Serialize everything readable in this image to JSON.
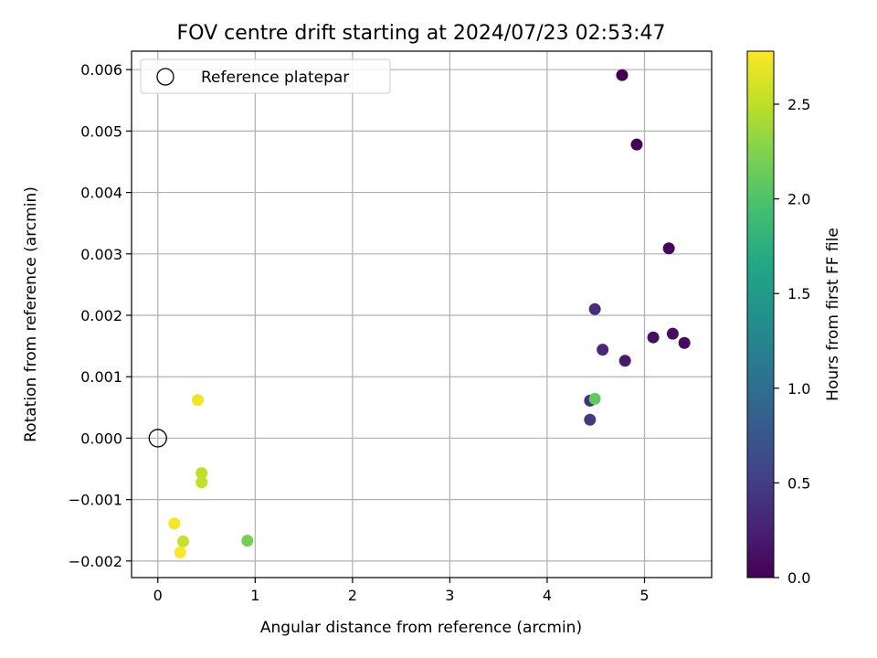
{
  "chart_data": {
    "type": "scatter",
    "title": "FOV centre drift starting at 2024/07/23 02:53:47",
    "xlabel": "Angular distance from reference (arcmin)",
    "ylabel": "Rotation from reference (arcmin)",
    "xlim": [
      -0.27,
      5.69
    ],
    "ylim": [
      -0.00227,
      0.0063
    ],
    "xticks": [
      0,
      1,
      2,
      3,
      4,
      5
    ],
    "xtick_labels": [
      "0",
      "1",
      "2",
      "3",
      "4",
      "5"
    ],
    "yticks": [
      -0.002,
      -0.001,
      0.0,
      0.001,
      0.002,
      0.003,
      0.004,
      0.005,
      0.006
    ],
    "ytick_labels": [
      "−0.002",
      "−0.001",
      "0.000",
      "0.001",
      "0.002",
      "0.003",
      "0.004",
      "0.005",
      "0.006"
    ],
    "grid": true,
    "legend": {
      "placement": "top-left",
      "entries": [
        "Reference platepar"
      ]
    },
    "reference_point": {
      "x": 0.0,
      "y": 0.0
    },
    "colorbar": {
      "label": "Hours from first FF file",
      "range": [
        0.0,
        2.78
      ],
      "ticks": [
        0.0,
        0.5,
        1.0,
        1.5,
        2.0,
        2.5
      ],
      "tick_labels": [
        "0.0",
        "0.5",
        "1.0",
        "1.5",
        "2.0",
        "2.5"
      ],
      "colormap": "viridis"
    },
    "points": [
      {
        "x": 4.77,
        "y": 0.00591,
        "hours": 0.0
      },
      {
        "x": 4.92,
        "y": 0.00478,
        "hours": 0.02
      },
      {
        "x": 5.25,
        "y": 0.00309,
        "hours": 0.05
      },
      {
        "x": 5.41,
        "y": 0.00155,
        "hours": 0.07
      },
      {
        "x": 5.29,
        "y": 0.0017,
        "hours": 0.1
      },
      {
        "x": 5.09,
        "y": 0.00164,
        "hours": 0.12
      },
      {
        "x": 4.8,
        "y": 0.00126,
        "hours": 0.2
      },
      {
        "x": 4.57,
        "y": 0.00144,
        "hours": 0.3
      },
      {
        "x": 4.49,
        "y": 0.0021,
        "hours": 0.35
      },
      {
        "x": 4.44,
        "y": 0.00061,
        "hours": 0.4
      },
      {
        "x": 4.44,
        "y": 0.0003,
        "hours": 0.45
      },
      {
        "x": 4.49,
        "y": 0.00064,
        "hours": 2.1
      },
      {
        "x": 0.92,
        "y": -0.00167,
        "hours": 2.2
      },
      {
        "x": 0.45,
        "y": -0.00057,
        "hours": 2.5
      },
      {
        "x": 0.45,
        "y": -0.00072,
        "hours": 2.52
      },
      {
        "x": 0.26,
        "y": -0.00168,
        "hours": 2.55
      },
      {
        "x": 0.41,
        "y": 0.00062,
        "hours": 2.72
      },
      {
        "x": 0.17,
        "y": -0.00139,
        "hours": 2.75
      },
      {
        "x": 0.23,
        "y": -0.00186,
        "hours": 2.77
      }
    ]
  }
}
